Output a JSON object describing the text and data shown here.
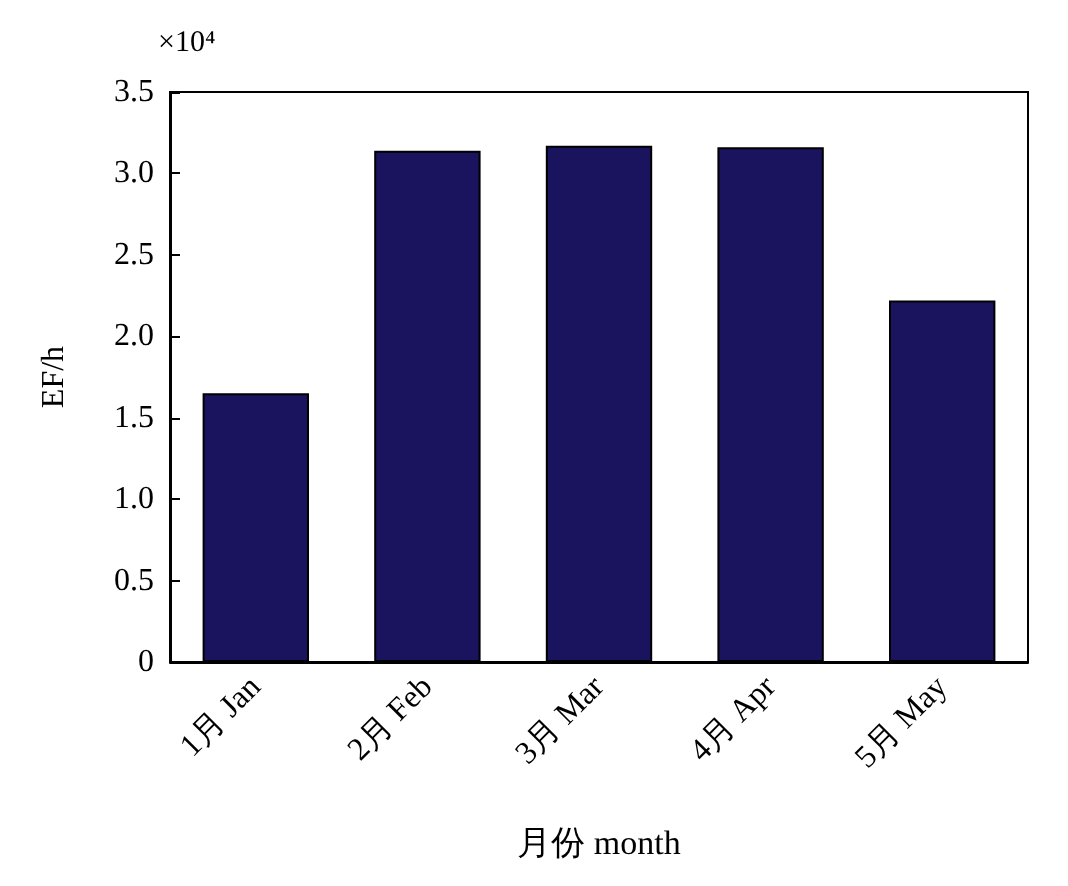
{
  "chart_data": {
    "type": "bar",
    "xlabel": "月份 month",
    "ylabel": "EF/h",
    "categories": [
      "1月 Jan",
      "2月 Feb",
      "3月 Mar",
      "4月 Apr",
      "5月 May"
    ],
    "values": [
      1.65,
      3.14,
      3.17,
      3.16,
      2.22
    ],
    "color": "#1a145e",
    "ylim": [
      0,
      3.5
    ],
    "yticks": [
      0,
      0.5,
      {
        "value": 1,
        "label": "1.0"
      },
      1.5,
      {
        "value": 2,
        "label": "2.0"
      },
      2.5,
      {
        "value": 3,
        "label": "3.0"
      },
      3.5
    ],
    "annotations": [
      "×10⁴"
    ]
  }
}
